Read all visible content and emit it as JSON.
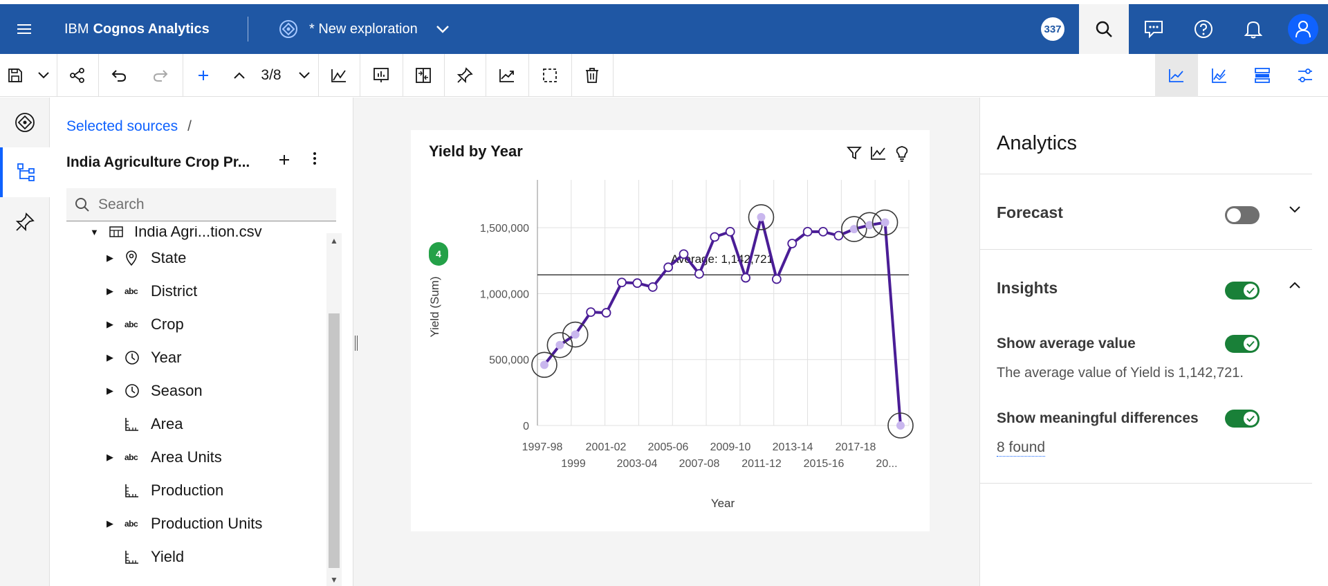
{
  "app": {
    "brand_prefix": "IBM",
    "brand_name": "Cognos Analytics",
    "exploration_title": "* New exploration",
    "badge_count": "337"
  },
  "toolbar": {
    "page_indicator": "3/8"
  },
  "data_panel": {
    "breadcrumb": "Selected sources",
    "breadcrumb_sep": "/",
    "source_title": "India Agriculture Crop Pr...",
    "search_placeholder": "Search",
    "table_name": "India Agri...tion.csv",
    "fields": [
      {
        "label": "State",
        "icon": "location-icon",
        "expandable": true
      },
      {
        "label": "District",
        "icon": "text-abc-icon",
        "expandable": true
      },
      {
        "label": "Crop",
        "icon": "text-abc-icon",
        "expandable": true
      },
      {
        "label": "Year",
        "icon": "clock-icon",
        "expandable": true
      },
      {
        "label": "Season",
        "icon": "clock-icon",
        "expandable": true
      },
      {
        "label": "Area",
        "icon": "measure-icon",
        "expandable": false
      },
      {
        "label": "Area Units",
        "icon": "text-abc-icon",
        "expandable": true
      },
      {
        "label": "Production",
        "icon": "measure-icon",
        "expandable": false
      },
      {
        "label": "Production Units",
        "icon": "text-abc-icon",
        "expandable": true
      },
      {
        "label": "Yield",
        "icon": "measure-icon",
        "expandable": false
      }
    ]
  },
  "card": {
    "title": "Yield by Year",
    "insight_count": "4"
  },
  "chart_data": {
    "type": "line",
    "xlabel": "Year",
    "ylabel": "Yield (Sum)",
    "ylim": [
      0,
      1800000
    ],
    "yticks": [
      0,
      500000,
      1000000,
      1500000
    ],
    "ytick_labels": [
      "0",
      "500,000",
      "1,000,000",
      "1,500,000"
    ],
    "xtick_labels_row1": [
      "1997-98",
      "2001-02",
      "2005-06",
      "2009-10",
      "2013-14",
      "2017-18"
    ],
    "xtick_labels_row2": [
      "1999",
      "2003-04",
      "2007-08",
      "2011-12",
      "2015-16",
      "20..."
    ],
    "average": 1142721,
    "average_label": "Average: 1,142,721",
    "line_color": "#4a1d96",
    "grid": true,
    "points": [
      {
        "x": "1997-98",
        "y": 460000,
        "highlight": true
      },
      {
        "x": "1998-99",
        "y": 610000,
        "highlight": true
      },
      {
        "x": "1999",
        "y": 690000,
        "highlight": true
      },
      {
        "x": "1999-00",
        "y": 860000,
        "highlight": false
      },
      {
        "x": "2000-01",
        "y": 855000,
        "highlight": false
      },
      {
        "x": "2001-02",
        "y": 1085000,
        "highlight": false
      },
      {
        "x": "2002-03",
        "y": 1080000,
        "highlight": false
      },
      {
        "x": "2003-04",
        "y": 1050000,
        "highlight": false
      },
      {
        "x": "2004-05",
        "y": 1200000,
        "highlight": false
      },
      {
        "x": "2005-06",
        "y": 1300000,
        "highlight": false
      },
      {
        "x": "2006-07",
        "y": 1150000,
        "highlight": false
      },
      {
        "x": "2007-08",
        "y": 1430000,
        "highlight": false
      },
      {
        "x": "2008-09",
        "y": 1470000,
        "highlight": false
      },
      {
        "x": "2009-10",
        "y": 1120000,
        "highlight": false
      },
      {
        "x": "2010-11",
        "y": 1580000,
        "highlight": true
      },
      {
        "x": "2011-12",
        "y": 1110000,
        "highlight": false
      },
      {
        "x": "2012-13",
        "y": 1380000,
        "highlight": false
      },
      {
        "x": "2013-14",
        "y": 1470000,
        "highlight": false
      },
      {
        "x": "2014-15",
        "y": 1470000,
        "highlight": false
      },
      {
        "x": "2015-16",
        "y": 1440000,
        "highlight": false
      },
      {
        "x": "2016-17",
        "y": 1490000,
        "highlight": true
      },
      {
        "x": "2017-18",
        "y": 1520000,
        "highlight": true
      },
      {
        "x": "2018-19",
        "y": 1540000,
        "highlight": true
      },
      {
        "x": "2019-20",
        "y": 0,
        "highlight": true
      }
    ]
  },
  "analytics": {
    "title": "Analytics",
    "forecast_label": "Forecast",
    "forecast_enabled": false,
    "insights_label": "Insights",
    "insights_enabled": true,
    "show_average_label": "Show average value",
    "show_average_enabled": true,
    "average_description": "The average value of Yield is 1,142,721.",
    "show_diff_label": "Show meaningful differences",
    "show_diff_enabled": true,
    "diff_found": "8 found"
  },
  "colors": {
    "header_bg": "#1f57a4",
    "accent": "#0f62fe",
    "toggle_on": "#198038",
    "line": "#4a1d96"
  }
}
